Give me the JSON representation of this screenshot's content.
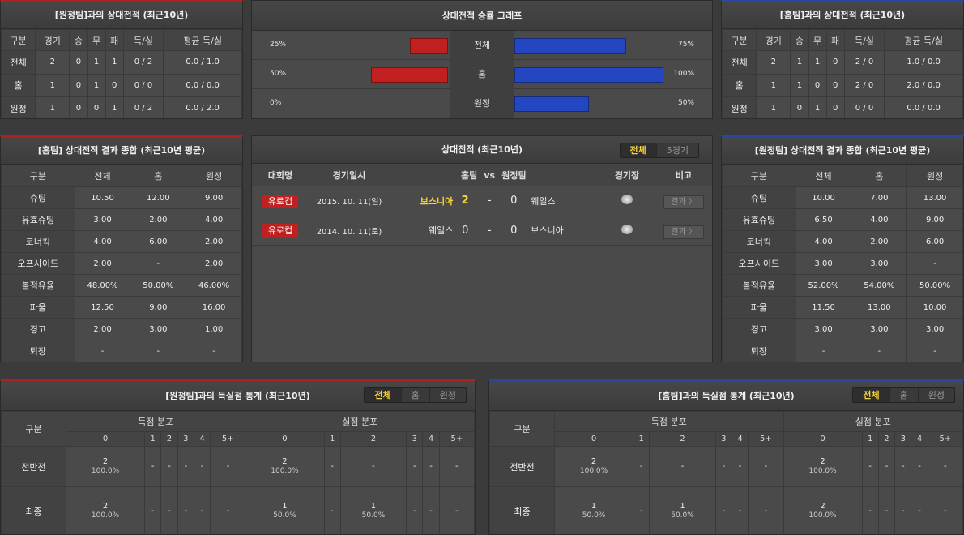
{
  "colors": {
    "away": "#b0201e",
    "home": "#2a45a8",
    "highlight": "#f7d43a"
  },
  "h2h_left": {
    "title": "[원정팀]과의 상대전적 (최근10년)",
    "headers": [
      "구분",
      "경기",
      "승",
      "무",
      "패",
      "득/실",
      "평균 득/실"
    ],
    "rows": [
      [
        "전체",
        "2",
        "0",
        "1",
        "1",
        "0 / 2",
        "0.0 / 1.0"
      ],
      [
        "홈",
        "1",
        "0",
        "1",
        "0",
        "0 / 0",
        "0.0 / 0.0"
      ],
      [
        "원정",
        "1",
        "0",
        "0",
        "1",
        "0 / 2",
        "0.0 / 2.0"
      ]
    ]
  },
  "h2h_right": {
    "title": "[홈팀]과의 상대전적 (최근10년)",
    "headers": [
      "구분",
      "경기",
      "승",
      "무",
      "패",
      "득/실",
      "평균 득/실"
    ],
    "rows": [
      [
        "전체",
        "2",
        "1",
        "1",
        "0",
        "2 / 0",
        "1.0 / 0.0"
      ],
      [
        "홈",
        "1",
        "1",
        "0",
        "0",
        "2 / 0",
        "2.0 / 0.0"
      ],
      [
        "원정",
        "1",
        "0",
        "1",
        "0",
        "0 / 0",
        "0.0 / 0.0"
      ]
    ]
  },
  "graph": {
    "title": "상대전적 승률 그래프",
    "rows": [
      {
        "label": "전체",
        "left": "25%",
        "left_value": 25,
        "right": "75%",
        "right_value": 75
      },
      {
        "label": "홈",
        "left": "50%",
        "left_value": 50,
        "right": "100%",
        "right_value": 100
      },
      {
        "label": "원정",
        "left": "0%",
        "left_value": 0,
        "right": "50%",
        "right_value": 50
      }
    ]
  },
  "summary_left": {
    "title": "[홈팀] 상대전적 결과 종합 (최근10년 평균)",
    "headers": [
      "구분",
      "전체",
      "홈",
      "원정"
    ],
    "rows": [
      [
        "슈팅",
        "10.50",
        "12.00",
        "9.00"
      ],
      [
        "유효슈팅",
        "3.00",
        "2.00",
        "4.00"
      ],
      [
        "코너킥",
        "4.00",
        "6.00",
        "2.00"
      ],
      [
        "오프사이드",
        "2.00",
        "-",
        "2.00"
      ],
      [
        "볼점유율",
        "48.00%",
        "50.00%",
        "46.00%"
      ],
      [
        "파울",
        "12.50",
        "9.00",
        "16.00"
      ],
      [
        "경고",
        "2.00",
        "3.00",
        "1.00"
      ],
      [
        "퇴장",
        "-",
        "-",
        "-"
      ]
    ]
  },
  "summary_right": {
    "title": "[원정팀] 상대전적 결과 종합 (최근10년 평균)",
    "headers": [
      "구분",
      "전체",
      "홈",
      "원정"
    ],
    "rows": [
      [
        "슈팅",
        "10.00",
        "7.00",
        "13.00"
      ],
      [
        "유효슈팅",
        "6.50",
        "4.00",
        "9.00"
      ],
      [
        "코너킥",
        "4.00",
        "2.00",
        "6.00"
      ],
      [
        "오프사이드",
        "3.00",
        "3.00",
        "-"
      ],
      [
        "볼점유율",
        "52.00%",
        "54.00%",
        "50.00%"
      ],
      [
        "파울",
        "11.50",
        "13.00",
        "10.00"
      ],
      [
        "경고",
        "3.00",
        "3.00",
        "3.00"
      ],
      [
        "퇴장",
        "-",
        "-",
        "-"
      ]
    ]
  },
  "matches": {
    "title": "상대전적 (최근10년)",
    "tabs": [
      "전체",
      "5경기"
    ],
    "headers": [
      "대회명",
      "경기일시",
      "홈팀",
      "vs",
      "원정팀",
      "경기장",
      "비고"
    ],
    "rows": [
      {
        "league": "유로컵",
        "date": "2015. 10. 11(일)",
        "home": "보스니아",
        "home_score": "2",
        "sep": "-",
        "away_score": "0",
        "away": "웨일스",
        "result": "결과 〉",
        "home_win": true
      },
      {
        "league": "유로컵",
        "date": "2014. 10. 11(토)",
        "home": "웨일스",
        "home_score": "0",
        "sep": "-",
        "away_score": "0",
        "away": "보스니아",
        "result": "결과 〉",
        "home_win": false
      }
    ]
  },
  "goals_left": {
    "title": "[원정팀]과의 득실점 통계 (최근10년)",
    "tabs": [
      "전체",
      "홈",
      "원정"
    ],
    "col_label": "구분",
    "group_scored": "득점 분포",
    "group_conceded": "실점 분포",
    "buckets": [
      "0",
      "1",
      "2",
      "3",
      "4",
      "5+"
    ],
    "rows": [
      {
        "label": "전반전",
        "cells": [
          [
            "2",
            "100.0%"
          ],
          [
            "-"
          ],
          [
            "-"
          ],
          [
            "-"
          ],
          [
            "-"
          ],
          [
            "-"
          ],
          [
            "2",
            "100.0%"
          ],
          [
            "-"
          ],
          [
            "-"
          ],
          [
            "-"
          ],
          [
            "-"
          ],
          [
            "-"
          ]
        ]
      },
      {
        "label": "최종",
        "cells": [
          [
            "2",
            "100.0%"
          ],
          [
            "-"
          ],
          [
            "-"
          ],
          [
            "-"
          ],
          [
            "-"
          ],
          [
            "-"
          ],
          [
            "1",
            "50.0%"
          ],
          [
            "-"
          ],
          [
            "1",
            "50.0%"
          ],
          [
            "-"
          ],
          [
            "-"
          ],
          [
            "-"
          ]
        ]
      }
    ]
  },
  "goals_right": {
    "title": "[홈팀]과의 득실점 통계 (최근10년)",
    "tabs": [
      "전체",
      "홈",
      "원정"
    ],
    "col_label": "구분",
    "group_scored": "득점 분포",
    "group_conceded": "실점 분포",
    "buckets": [
      "0",
      "1",
      "2",
      "3",
      "4",
      "5+"
    ],
    "rows": [
      {
        "label": "전반전",
        "cells": [
          [
            "2",
            "100.0%"
          ],
          [
            "-"
          ],
          [
            "-"
          ],
          [
            "-"
          ],
          [
            "-"
          ],
          [
            "-"
          ],
          [
            "2",
            "100.0%"
          ],
          [
            "-"
          ],
          [
            "-"
          ],
          [
            "-"
          ],
          [
            "-"
          ],
          [
            "-"
          ]
        ]
      },
      {
        "label": "최종",
        "cells": [
          [
            "1",
            "50.0%"
          ],
          [
            "-"
          ],
          [
            "1",
            "50.0%"
          ],
          [
            "-"
          ],
          [
            "-"
          ],
          [
            "-"
          ],
          [
            "2",
            "100.0%"
          ],
          [
            "-"
          ],
          [
            "-"
          ],
          [
            "-"
          ],
          [
            "-"
          ],
          [
            "-"
          ]
        ]
      }
    ]
  }
}
